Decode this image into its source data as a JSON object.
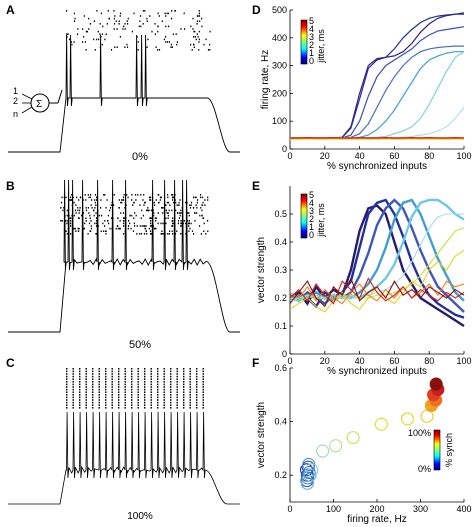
{
  "panels": {
    "A": {
      "label": "A",
      "caption": "0%"
    },
    "B": {
      "label": "B",
      "caption": "50%"
    },
    "C": {
      "label": "C",
      "caption": "100%"
    },
    "D": {
      "label": "D"
    },
    "E": {
      "label": "E"
    },
    "F": {
      "label": "F"
    }
  },
  "neuron_inputs": {
    "labels": [
      "1",
      "2",
      "n"
    ]
  },
  "jitter_colorbar": {
    "label": "jitter, ms",
    "ticks": [
      "5",
      "4",
      "3",
      "2",
      "1",
      "0"
    ]
  },
  "synch_colorbar": {
    "label": "% synch",
    "ticks": [
      "100%",
      "0%"
    ]
  },
  "chart_data": [
    {
      "panel": "D",
      "type": "line",
      "xlabel": "% synchronized inputs",
      "ylabel": "firing rate, Hz",
      "xlim": [
        0,
        100
      ],
      "ylim": [
        0,
        500
      ],
      "xticks": [
        0,
        20,
        40,
        60,
        80,
        100
      ],
      "yticks": [
        0,
        100,
        200,
        300,
        400,
        500
      ],
      "x": [
        0,
        5,
        10,
        15,
        20,
        25,
        30,
        35,
        40,
        45,
        50,
        55,
        60,
        65,
        70,
        75,
        80,
        85,
        90,
        95,
        100
      ],
      "series": [
        {
          "color": "#3b1f78",
          "values": [
            40,
            40,
            40,
            40,
            40,
            40,
            42,
            80,
            200,
            300,
            325,
            330,
            335,
            350,
            380,
            420,
            450,
            470,
            480,
            485,
            490
          ]
        },
        {
          "color": "#1f2f9a",
          "values": [
            40,
            40,
            40,
            40,
            40,
            40,
            42,
            75,
            180,
            290,
            320,
            330,
            360,
            400,
            430,
            455,
            470,
            478,
            482,
            485,
            485
          ]
        },
        {
          "color": "#3a4fb5",
          "values": [
            40,
            40,
            40,
            40,
            40,
            40,
            40,
            50,
            100,
            190,
            260,
            300,
            320,
            340,
            360,
            390,
            410,
            425,
            430,
            435,
            440
          ]
        },
        {
          "color": "#4a6fc0",
          "values": [
            40,
            40,
            40,
            40,
            40,
            40,
            40,
            42,
            55,
            90,
            150,
            210,
            260,
            300,
            330,
            350,
            360,
            365,
            368,
            370,
            370
          ]
        },
        {
          "color": "#3fa0d0",
          "values": [
            40,
            40,
            40,
            40,
            40,
            40,
            40,
            40,
            42,
            50,
            70,
            100,
            140,
            190,
            240,
            290,
            320,
            335,
            345,
            350,
            350
          ]
        },
        {
          "color": "#80d0e8",
          "values": [
            40,
            40,
            40,
            40,
            40,
            40,
            40,
            40,
            40,
            40,
            42,
            45,
            55,
            65,
            80,
            110,
            160,
            220,
            280,
            330,
            350
          ]
        },
        {
          "color": "#b0e0e8",
          "values": [
            40,
            40,
            40,
            40,
            40,
            40,
            40,
            40,
            40,
            40,
            40,
            40,
            40,
            42,
            45,
            50,
            55,
            65,
            80,
            110,
            150
          ]
        },
        {
          "color": "#e8e030",
          "values": [
            35,
            35,
            36,
            35,
            35,
            36,
            35,
            35,
            36,
            35,
            35,
            36,
            35,
            35,
            36,
            35,
            36,
            35,
            35,
            36,
            35
          ]
        },
        {
          "color": "#f08020",
          "values": [
            38,
            38,
            39,
            38,
            38,
            39,
            38,
            38,
            39,
            38,
            38,
            39,
            38,
            38,
            39,
            38,
            39,
            38,
            38,
            39,
            38
          ]
        },
        {
          "color": "#d42020",
          "values": [
            40,
            40,
            41,
            40,
            40,
            41,
            40,
            40,
            41,
            40,
            40,
            41,
            40,
            40,
            41,
            40,
            41,
            40,
            40,
            41,
            40
          ]
        }
      ]
    },
    {
      "panel": "E",
      "type": "line",
      "xlabel": "% synchronized inputs",
      "ylabel": "vector strength",
      "xlim": [
        0,
        100
      ],
      "ylim": [
        0,
        0.6
      ],
      "xticks": [
        0,
        20,
        40,
        60,
        80,
        100
      ],
      "yticks": [
        0,
        0.1,
        0.2,
        0.3,
        0.4,
        0.5
      ],
      "x": [
        0,
        5,
        10,
        15,
        20,
        25,
        30,
        35,
        40,
        45,
        50,
        55,
        60,
        65,
        70,
        75,
        80,
        85,
        90,
        95,
        100
      ],
      "series": [
        {
          "color": "#2a1a6e",
          "values": [
            0.2,
            0.22,
            0.18,
            0.24,
            0.2,
            0.23,
            0.21,
            0.3,
            0.44,
            0.52,
            0.53,
            0.5,
            0.4,
            0.3,
            0.25,
            0.2,
            0.18,
            0.16,
            0.14,
            0.12,
            0.1
          ]
        },
        {
          "color": "#2030a0",
          "values": [
            0.19,
            0.21,
            0.2,
            0.17,
            0.22,
            0.2,
            0.22,
            0.26,
            0.38,
            0.5,
            0.54,
            0.55,
            0.5,
            0.42,
            0.33,
            0.26,
            0.21,
            0.18,
            0.16,
            0.14,
            0.13
          ]
        },
        {
          "color": "#3e57b8",
          "values": [
            0.21,
            0.19,
            0.22,
            0.2,
            0.18,
            0.21,
            0.2,
            0.22,
            0.28,
            0.36,
            0.46,
            0.52,
            0.55,
            0.52,
            0.45,
            0.37,
            0.3,
            0.24,
            0.21,
            0.18,
            0.15
          ]
        },
        {
          "color": "#3fa0d0",
          "values": [
            0.2,
            0.21,
            0.2,
            0.22,
            0.2,
            0.19,
            0.21,
            0.2,
            0.22,
            0.25,
            0.3,
            0.38,
            0.48,
            0.54,
            0.55,
            0.5,
            0.42,
            0.34,
            0.28,
            0.22,
            0.19
          ]
        },
        {
          "color": "#70c8e0",
          "values": [
            0.2,
            0.19,
            0.21,
            0.2,
            0.2,
            0.21,
            0.2,
            0.21,
            0.2,
            0.22,
            0.24,
            0.27,
            0.32,
            0.4,
            0.49,
            0.54,
            0.55,
            0.55,
            0.53,
            0.5,
            0.48
          ]
        },
        {
          "color": "#a8dce8",
          "values": [
            0.19,
            0.2,
            0.2,
            0.21,
            0.2,
            0.2,
            0.21,
            0.2,
            0.2,
            0.21,
            0.22,
            0.23,
            0.25,
            0.28,
            0.33,
            0.39,
            0.45,
            0.49,
            0.5,
            0.5,
            0.5
          ]
        },
        {
          "color": "#c8e040",
          "values": [
            0.2,
            0.2,
            0.21,
            0.2,
            0.2,
            0.2,
            0.2,
            0.21,
            0.2,
            0.2,
            0.21,
            0.21,
            0.22,
            0.23,
            0.25,
            0.28,
            0.32,
            0.36,
            0.4,
            0.44,
            0.45
          ]
        },
        {
          "color": "#e8d020",
          "values": [
            0.16,
            0.18,
            0.2,
            0.17,
            0.15,
            0.19,
            0.22,
            0.18,
            0.16,
            0.2,
            0.24,
            0.2,
            0.18,
            0.22,
            0.26,
            0.24,
            0.3,
            0.33,
            0.3,
            0.35,
            0.37
          ]
        },
        {
          "color": "#f08020",
          "values": [
            0.22,
            0.2,
            0.24,
            0.19,
            0.23,
            0.2,
            0.18,
            0.22,
            0.25,
            0.21,
            0.19,
            0.23,
            0.2,
            0.24,
            0.2,
            0.22,
            0.25,
            0.21,
            0.26,
            0.24,
            0.25
          ]
        },
        {
          "color": "#d42020",
          "values": [
            0.2,
            0.23,
            0.19,
            0.25,
            0.21,
            0.18,
            0.26,
            0.23,
            0.2,
            0.27,
            0.22,
            0.19,
            0.21,
            0.24,
            0.2,
            0.23,
            0.21,
            0.19,
            0.22,
            0.2,
            0.22
          ]
        },
        {
          "color": "#8a1010",
          "values": [
            0.18,
            0.22,
            0.26,
            0.2,
            0.17,
            0.24,
            0.21,
            0.27,
            0.19,
            0.22,
            0.24,
            0.2,
            0.26,
            0.21,
            0.23,
            0.2,
            0.24,
            0.22,
            0.2,
            0.23,
            0.21
          ]
        }
      ]
    },
    {
      "panel": "F",
      "type": "scatter",
      "xlabel": "firing rate, Hz",
      "ylabel": "vector strength",
      "xlim": [
        0,
        400
      ],
      "ylim": [
        0.1,
        0.6
      ],
      "xticks": [
        0,
        100,
        200,
        300,
        400
      ],
      "yticks": [
        0.2,
        0.4,
        0.6
      ],
      "points": [
        {
          "x": 38,
          "y": 0.22,
          "color": "#2a2a8a",
          "filled": false
        },
        {
          "x": 40,
          "y": 0.2,
          "color": "#3040a0",
          "filled": false
        },
        {
          "x": 42,
          "y": 0.23,
          "color": "#3050b0",
          "filled": false
        },
        {
          "x": 39,
          "y": 0.18,
          "color": "#3060b8",
          "filled": false
        },
        {
          "x": 44,
          "y": 0.21,
          "color": "#3070c0",
          "filled": false
        },
        {
          "x": 41,
          "y": 0.19,
          "color": "#4080c8",
          "filled": false
        },
        {
          "x": 43,
          "y": 0.24,
          "color": "#5090d0",
          "filled": false
        },
        {
          "x": 40,
          "y": 0.17,
          "color": "#60a8d8",
          "filled": false
        },
        {
          "x": 46,
          "y": 0.2,
          "color": "#70b8e0",
          "filled": false
        },
        {
          "x": 50,
          "y": 0.22,
          "color": "#80c8e0",
          "filled": false
        },
        {
          "x": 75,
          "y": 0.29,
          "color": "#a0d8c0",
          "filled": false
        },
        {
          "x": 105,
          "y": 0.31,
          "color": "#b8e090",
          "filled": false
        },
        {
          "x": 145,
          "y": 0.34,
          "color": "#c8e060",
          "filled": false
        },
        {
          "x": 210,
          "y": 0.39,
          "color": "#d8e030",
          "filled": false
        },
        {
          "x": 270,
          "y": 0.41,
          "color": "#e0d820",
          "filled": false
        },
        {
          "x": 315,
          "y": 0.42,
          "color": "#e8c820",
          "filled": false
        },
        {
          "x": 325,
          "y": 0.46,
          "color": "#f0a020",
          "filled": true
        },
        {
          "x": 335,
          "y": 0.48,
          "color": "#f07020",
          "filled": true
        },
        {
          "x": 330,
          "y": 0.5,
          "color": "#e04020",
          "filled": true
        },
        {
          "x": 340,
          "y": 0.52,
          "color": "#c82020",
          "filled": true
        },
        {
          "x": 336,
          "y": 0.54,
          "color": "#8a1010",
          "filled": true
        }
      ]
    }
  ]
}
